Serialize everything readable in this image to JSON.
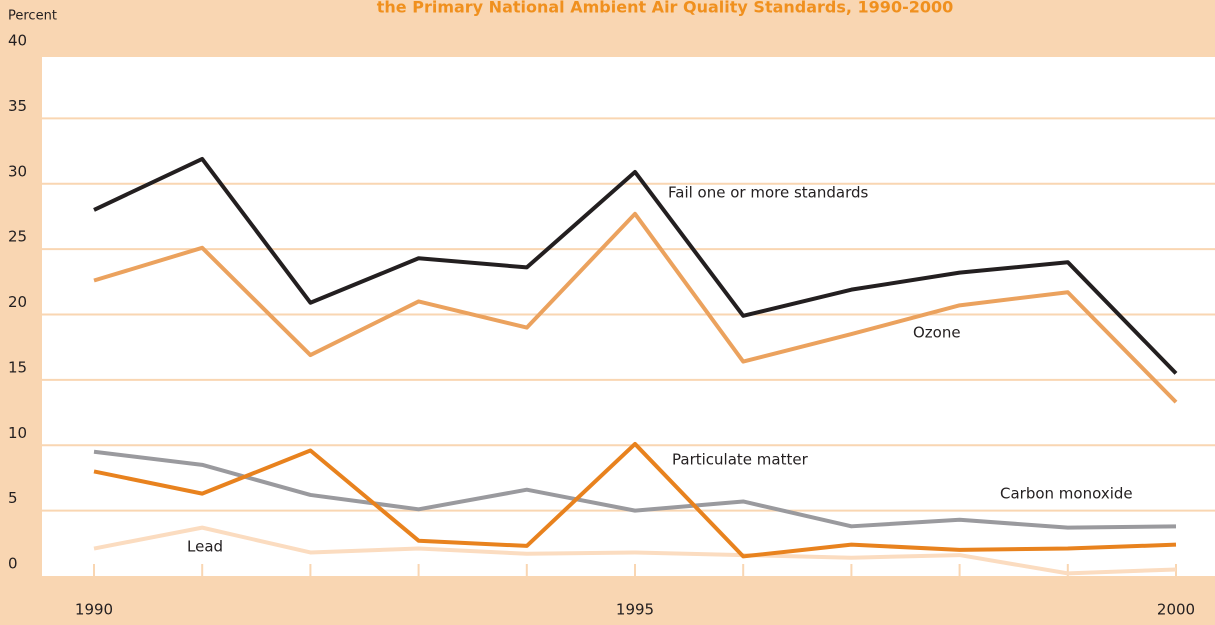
{
  "chart_data": {
    "type": "line",
    "title": "the Primary National Ambient Air Quality Standards, 1990-2000",
    "y_label": "Percent",
    "x": [
      1990,
      1991,
      1992,
      1993,
      1994,
      1995,
      1996,
      1997,
      1998,
      1999,
      2000
    ],
    "xlim": [
      1990,
      2000
    ],
    "xticks": [
      1990,
      1995,
      2000
    ],
    "ylim": [
      0,
      40
    ],
    "yticks": [
      0,
      5,
      10,
      15,
      20,
      25,
      30,
      35,
      40
    ],
    "grid": true,
    "series": [
      {
        "name": "Fail one or more standards",
        "color": "#231f20",
        "values": [
          28,
          31.9,
          20.9,
          24.3,
          23.6,
          30.9,
          19.9,
          21.9,
          23.2,
          24,
          15.5
        ]
      },
      {
        "name": "Ozone",
        "color": "#eba25e",
        "values": [
          22.6,
          25.1,
          16.9,
          21,
          19,
          27.7,
          16.4,
          18.5,
          20.7,
          21.7,
          13.3
        ]
      },
      {
        "name": "Particulate matter",
        "color": "#e8821e",
        "values": [
          8,
          6.3,
          9.6,
          2.7,
          2.3,
          10.1,
          1.5,
          2.4,
          2,
          2.1,
          2.4
        ]
      },
      {
        "name": "Carbon monoxide",
        "color": "#9a9a9e",
        "values": [
          9.5,
          8.5,
          6.2,
          5.1,
          6.6,
          5,
          5.7,
          3.8,
          4.3,
          3.7,
          3.8
        ]
      },
      {
        "name": "Lead",
        "color": "#fbdcc0",
        "values": [
          2.1,
          3.7,
          1.8,
          2.1,
          1.7,
          1.8,
          1.6,
          1.4,
          1.6,
          0.2,
          0.5
        ]
      }
    ]
  }
}
